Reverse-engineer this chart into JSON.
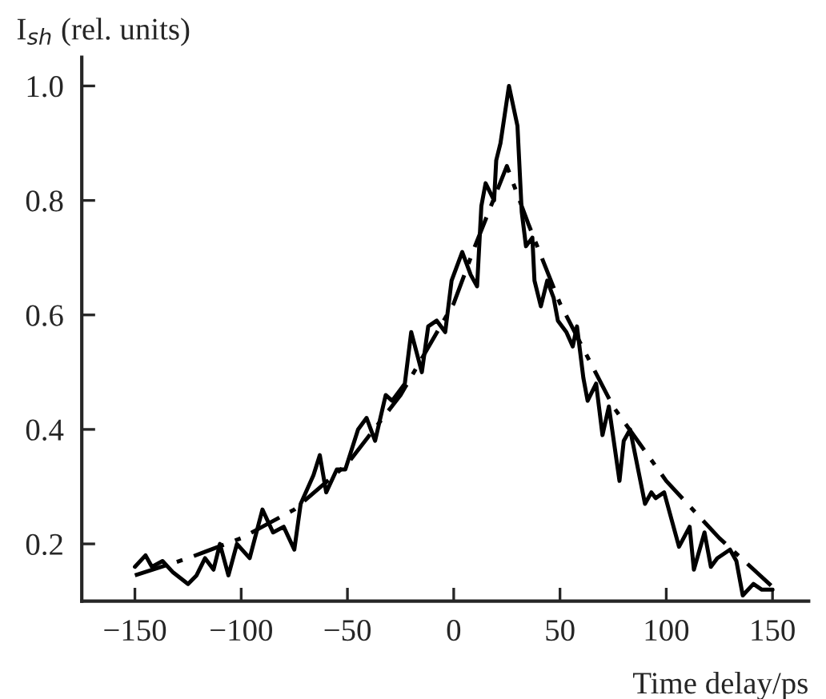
{
  "chart_data": {
    "type": "line",
    "xlabel": "Time delay/ps",
    "ylabel": "I$_{sh}$ (rel. units)",
    "xlim": [
      -175,
      167
    ],
    "ylim": [
      0.1,
      1.05
    ],
    "xticks": [
      {
        "value": -150,
        "label": "−150"
      },
      {
        "value": -100,
        "label": "−100"
      },
      {
        "value": -50,
        "label": "−50"
      },
      0,
      50,
      100,
      150
    ],
    "yticks": [
      {
        "value": 0.2,
        "label": "0.2"
      },
      {
        "value": 0.4,
        "label": "0.4"
      },
      {
        "value": 0.6,
        "label": "0.6"
      },
      {
        "value": 0.8,
        "label": "0.8"
      },
      {
        "value": 1.0,
        "label": "1.0"
      }
    ],
    "grid": false,
    "legend": false,
    "series": [
      {
        "color": "#000000",
        "line_style": "solid",
        "x": [
          -150,
          -145,
          -142,
          -137,
          -132,
          -125,
          -121,
          -117,
          -113,
          -110,
          -106,
          -102,
          -96,
          -90,
          -85,
          -80,
          -75,
          -72,
          -66,
          -63,
          -60,
          -55,
          -51,
          -45,
          -41,
          -37,
          -32,
          -29,
          -23,
          -20,
          -15,
          -12,
          -8,
          -4,
          -1,
          4,
          8,
          11,
          13,
          15,
          19,
          20,
          22,
          26,
          30,
          32,
          34,
          37,
          38,
          41,
          44,
          47,
          49,
          53,
          56,
          58,
          61,
          63,
          67,
          70,
          73,
          78,
          80,
          83,
          90,
          93,
          95,
          99,
          106,
          111,
          113,
          118,
          121,
          124,
          130,
          133,
          136,
          141,
          145,
          150
        ],
        "values": [
          0.16,
          0.18,
          0.16,
          0.17,
          0.15,
          0.13,
          0.145,
          0.175,
          0.155,
          0.2,
          0.145,
          0.2,
          0.175,
          0.26,
          0.22,
          0.23,
          0.19,
          0.27,
          0.32,
          0.355,
          0.29,
          0.33,
          0.33,
          0.4,
          0.42,
          0.38,
          0.46,
          0.45,
          0.48,
          0.57,
          0.5,
          0.58,
          0.59,
          0.57,
          0.66,
          0.71,
          0.67,
          0.65,
          0.79,
          0.83,
          0.8,
          0.87,
          0.9,
          1.0,
          0.93,
          0.78,
          0.72,
          0.735,
          0.66,
          0.615,
          0.66,
          0.63,
          0.59,
          0.57,
          0.545,
          0.58,
          0.49,
          0.45,
          0.48,
          0.39,
          0.44,
          0.31,
          0.38,
          0.4,
          0.27,
          0.29,
          0.28,
          0.29,
          0.195,
          0.23,
          0.155,
          0.22,
          0.16,
          0.175,
          0.19,
          0.17,
          0.11,
          0.13,
          0.12,
          0.12
        ]
      },
      {
        "color": "#000000",
        "line_style": "dashed",
        "x": [
          -150,
          -125,
          -100,
          -75,
          -50,
          -25,
          0,
          10,
          25,
          35,
          50,
          75,
          100,
          125,
          150
        ],
        "values": [
          0.145,
          0.175,
          0.21,
          0.26,
          0.34,
          0.46,
          0.62,
          0.72,
          0.86,
          0.76,
          0.62,
          0.44,
          0.31,
          0.21,
          0.125
        ]
      }
    ]
  }
}
